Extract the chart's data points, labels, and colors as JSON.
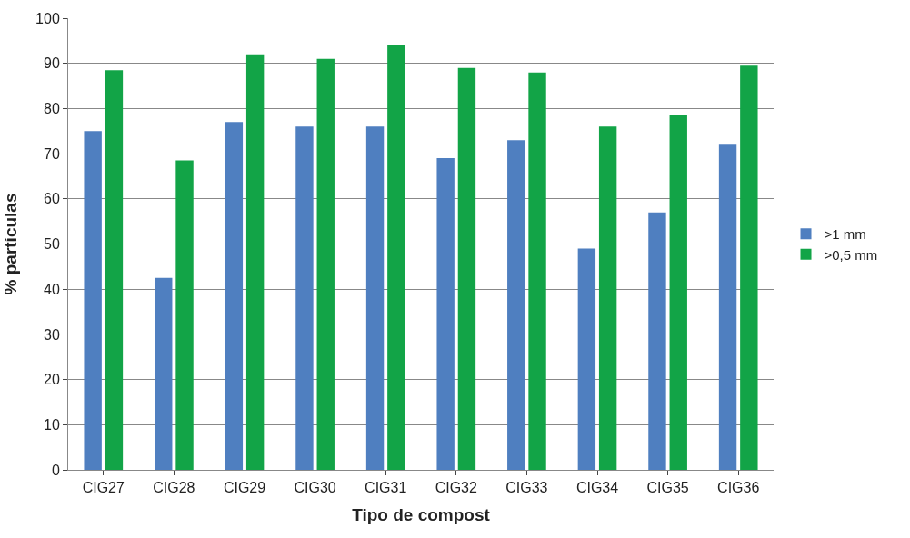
{
  "chart_data": {
    "type": "bar",
    "xlabel": "Tipo de compost",
    "ylabel": "% partículas",
    "categories": [
      "CIG27",
      "CIG28",
      "CIG29",
      "CIG30",
      "CIG31",
      "CIG32",
      "CIG33",
      "CIG34",
      "CIG35",
      "CIG36"
    ],
    "series": [
      {
        "name": ">1 mm",
        "color": "#4f7fc0",
        "values": [
          75,
          42.5,
          77,
          76,
          76,
          69,
          73,
          49,
          57,
          72
        ]
      },
      {
        "name": ">0,5 mm",
        "color": "#12a447",
        "values": [
          88.5,
          68.5,
          92,
          91,
          94,
          89,
          88,
          76,
          78.5,
          89.5
        ]
      }
    ],
    "ylim": [
      0,
      100
    ],
    "yticks": [
      0,
      10,
      20,
      30,
      40,
      50,
      60,
      70,
      80,
      90,
      100
    ],
    "grid": "y",
    "legend": "right"
  }
}
